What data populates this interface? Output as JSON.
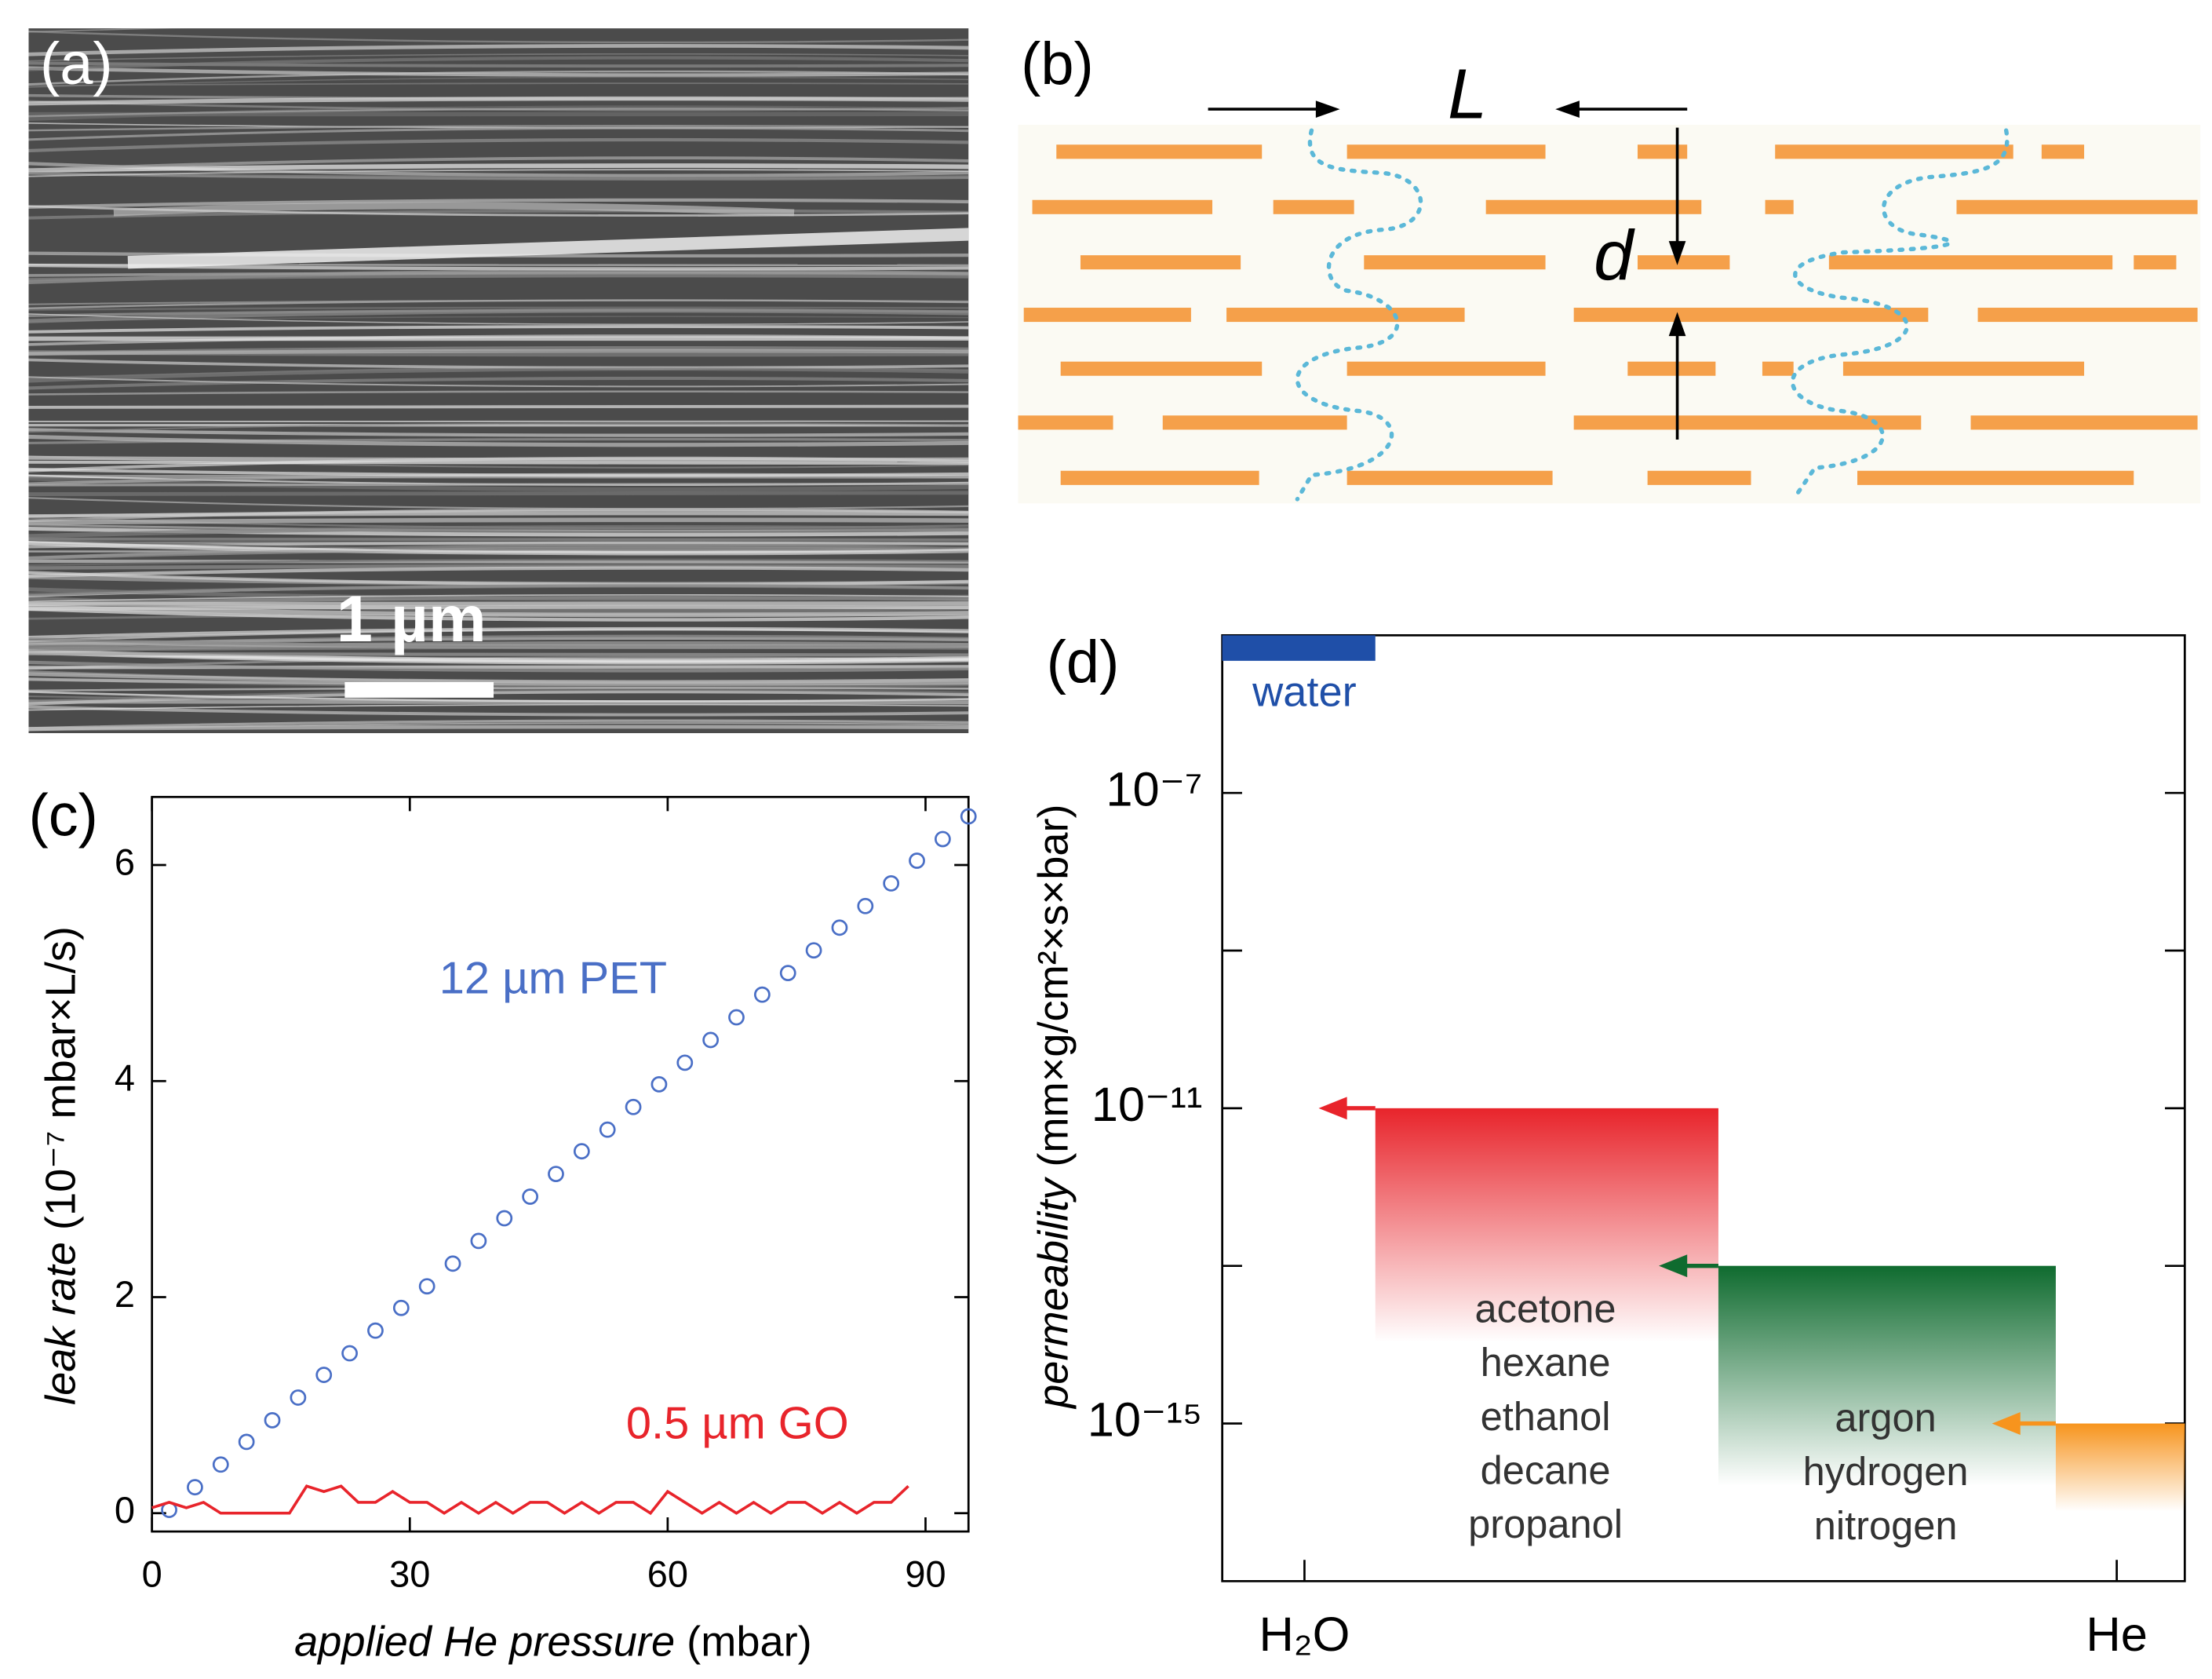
{
  "panels": {
    "a": {
      "label": "(a)",
      "scale_bar": "1 µm"
    },
    "b": {
      "label": "(b)",
      "L": "L",
      "d": "d"
    },
    "c": {
      "label": "(c)"
    },
    "d": {
      "label": "(d)"
    }
  },
  "chart_data": [
    {
      "type": "scatter",
      "xlabel": [
        "applied He pressure",
        " (mbar)"
      ],
      "ylabel": [
        "leak rate",
        "  (10⁻⁷ mbar×L/s)"
      ],
      "xlim": [
        0,
        95
      ],
      "ylim": [
        -0.17,
        6.63
      ],
      "xticks": [
        0,
        30,
        60,
        90
      ],
      "yticks": [
        0,
        2,
        4,
        6
      ],
      "series": [
        {
          "name": "12 µm PET",
          "color": "#4a6fc6",
          "marker": "circle",
          "x": [
            2,
            5,
            8,
            11,
            14,
            17,
            20,
            23,
            26,
            29,
            32,
            35,
            38,
            41,
            44,
            47,
            50,
            53,
            56,
            59,
            62,
            65,
            68,
            71,
            74,
            77,
            80,
            83,
            86,
            89,
            92,
            95
          ],
          "values": [
            0.03,
            0.24,
            0.45,
            0.66,
            0.86,
            1.07,
            1.28,
            1.48,
            1.69,
            1.9,
            2.1,
            2.31,
            2.52,
            2.73,
            2.93,
            3.14,
            3.35,
            3.55,
            3.76,
            3.97,
            4.17,
            4.38,
            4.59,
            4.8,
            5.0,
            5.21,
            5.42,
            5.62,
            5.83,
            6.04,
            6.24,
            6.45
          ]
        },
        {
          "name": "0.5 µm GO",
          "color": "#e8242b",
          "marker": "line",
          "x": [
            0,
            2,
            4,
            6,
            8,
            10,
            12,
            14,
            16,
            18,
            20,
            22,
            24,
            26,
            28,
            30,
            32,
            34,
            36,
            38,
            40,
            42,
            44,
            46,
            48,
            50,
            52,
            54,
            56,
            58,
            60,
            62,
            64,
            66,
            68,
            70,
            72,
            74,
            76,
            78,
            80,
            82,
            84,
            86,
            88
          ],
          "values": [
            0.05,
            0.1,
            0.05,
            0.1,
            0,
            0,
            0,
            0,
            0,
            0.25,
            0.2,
            0.25,
            0.1,
            0.1,
            0.2,
            0.1,
            0.1,
            0,
            0.1,
            0,
            0.1,
            0,
            0.1,
            0.1,
            0,
            0.1,
            0,
            0.1,
            0.1,
            0,
            0.2,
            0.1,
            0,
            0.1,
            0,
            0.1,
            0,
            0.1,
            0.1,
            0,
            0.1,
            0,
            0.1,
            0.1,
            0.25
          ]
        }
      ]
    },
    {
      "type": "bar",
      "log_y": true,
      "ylabel": [
        "permeability",
        " (mm×g/cm²×s×bar)"
      ],
      "categories": [
        "H₂O",
        "He"
      ],
      "ylim": [
        1e-17,
        1e-05
      ],
      "yticks": [
        {
          "value": 1e-07,
          "label": "10⁻⁷"
        },
        {
          "value": 1e-09,
          "label": null
        },
        {
          "value": 1e-11,
          "label": "10⁻¹¹"
        },
        {
          "value": 1e-13,
          "label": null
        },
        {
          "value": 1e-15,
          "label": "10⁻¹⁵"
        }
      ],
      "series": [
        {
          "name": "water",
          "color": "#1f4fa8",
          "value": 1e-05
        },
        {
          "names": [
            "acetone",
            "hexane",
            "ethanol",
            "decane",
            "propanol"
          ],
          "color": "#e8242b",
          "value": 1e-11
        },
        {
          "names": [
            "argon",
            "hydrogen",
            "nitrogen"
          ],
          "color": "#0f6b2f",
          "value": 1e-13
        },
        {
          "color": "#f7941d",
          "value": 1e-15
        }
      ]
    }
  ]
}
